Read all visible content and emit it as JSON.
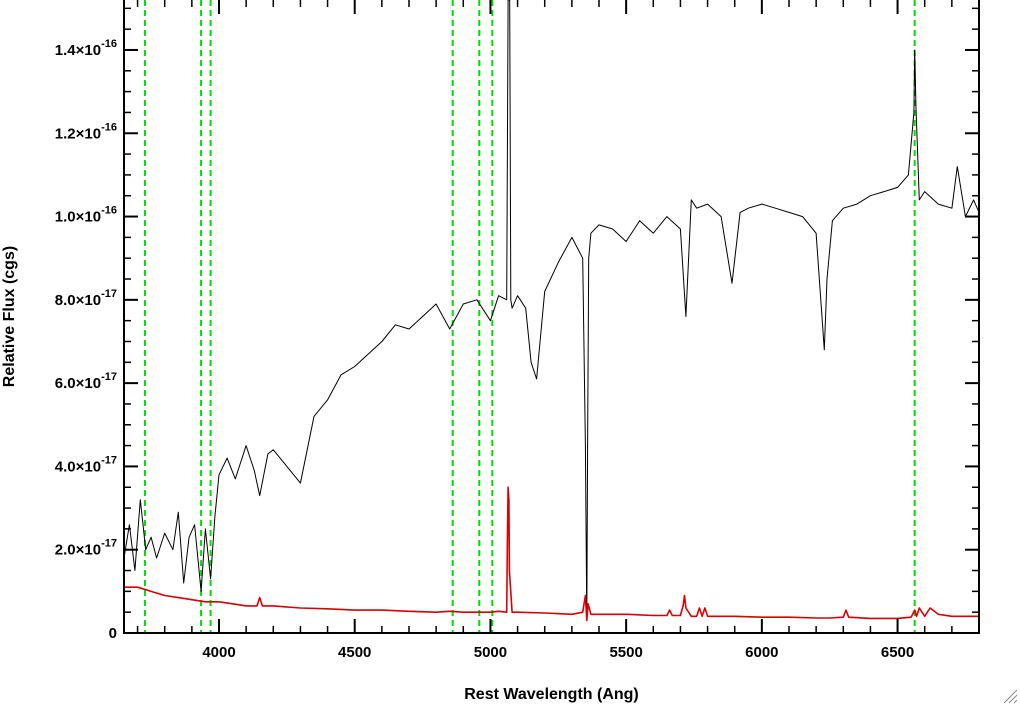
{
  "chart_data": {
    "type": "line",
    "xlabel": "Rest Wavelength (Ang)",
    "ylabel": "Relative Flux (cgs)",
    "xlim": [
      3650,
      6800
    ],
    "ylim": [
      0,
      1.52e-16
    ],
    "grid": false,
    "x_ticks": [
      4000,
      4500,
      5000,
      5500,
      6000,
      6500
    ],
    "x_tick_labels": [
      "4000",
      "4500",
      "5000",
      "5500",
      "6000",
      "6500"
    ],
    "y_ticks": [
      {
        "value": 0,
        "mantissa": "0",
        "exponent": ""
      },
      {
        "value": 2e-17,
        "mantissa": "2.0×10",
        "exponent": "-17"
      },
      {
        "value": 4e-17,
        "mantissa": "4.0×10",
        "exponent": "-17"
      },
      {
        "value": 6e-17,
        "mantissa": "6.0×10",
        "exponent": "-17"
      },
      {
        "value": 8e-17,
        "mantissa": "8.0×10",
        "exponent": "-17"
      },
      {
        "value": 1e-16,
        "mantissa": "1.0×10",
        "exponent": "-16"
      },
      {
        "value": 1.2e-16,
        "mantissa": "1.2×10",
        "exponent": "-16"
      },
      {
        "value": 1.4e-16,
        "mantissa": "1.4×10",
        "exponent": "-16"
      }
    ],
    "reference_lines_x": [
      3727,
      3934,
      3969,
      4861,
      4959,
      5007,
      6563
    ],
    "reference_line_color": "#00dd00",
    "series": [
      {
        "color": "#000000",
        "x": [
          3650,
          3670,
          3690,
          3710,
          3730,
          3750,
          3770,
          3800,
          3830,
          3850,
          3870,
          3890,
          3910,
          3934,
          3950,
          3969,
          3985,
          4000,
          4030,
          4060,
          4100,
          4130,
          4150,
          4180,
          4200,
          4250,
          4300,
          4350,
          4400,
          4450,
          4500,
          4550,
          4600,
          4650,
          4700,
          4750,
          4800,
          4850,
          4900,
          4950,
          5000,
          5030,
          5060,
          5065,
          5068,
          5071,
          5075,
          5080,
          5100,
          5130,
          5150,
          5170,
          5200,
          5250,
          5300,
          5340,
          5350,
          5355,
          5358,
          5362,
          5370,
          5400,
          5450,
          5500,
          5550,
          5600,
          5650,
          5700,
          5720,
          5740,
          5760,
          5800,
          5850,
          5890,
          5920,
          5950,
          6000,
          6050,
          6100,
          6150,
          6200,
          6230,
          6240,
          6260,
          6300,
          6350,
          6400,
          6450,
          6500,
          6540,
          6560,
          6563,
          6568,
          6580,
          6600,
          6650,
          6700,
          6720,
          6750,
          6780,
          6800
        ],
        "y": [
          1.8e-17,
          2.6e-17,
          1.5e-17,
          3.2e-17,
          2e-17,
          2.3e-17,
          1.8e-17,
          2.4e-17,
          2e-17,
          2.9e-17,
          1.2e-17,
          2.3e-17,
          2.6e-17,
          1e-17,
          2.5e-17,
          1.3e-17,
          2.8e-17,
          3.8e-17,
          4.2e-17,
          3.7e-17,
          4.5e-17,
          3.9e-17,
          3.3e-17,
          4.3e-17,
          4.4e-17,
          4e-17,
          3.6e-17,
          5.2e-17,
          5.6e-17,
          6.2e-17,
          6.4e-17,
          6.7e-17,
          7e-17,
          7.4e-17,
          7.3e-17,
          7.6e-17,
          7.9e-17,
          7.3e-17,
          7.9e-17,
          8e-17,
          7.5e-17,
          8.1e-17,
          8e-17,
          1.52e-16,
          1.52e-16,
          1.52e-16,
          8e-17,
          7.8e-17,
          8.1e-17,
          7.8e-17,
          6.5e-17,
          6.1e-17,
          8.2e-17,
          8.9e-17,
          9.5e-17,
          9e-17,
          4.5e-17,
          3e-18,
          4.5e-17,
          9e-17,
          9.6e-17,
          9.8e-17,
          9.7e-17,
          9.4e-17,
          9.9e-17,
          9.6e-17,
          1e-16,
          9.7e-17,
          7.6e-17,
          1.04e-16,
          1.02e-16,
          1.03e-16,
          1e-16,
          8.4e-17,
          1.01e-16,
          1.02e-16,
          1.03e-16,
          1.02e-16,
          1.01e-16,
          1e-16,
          9.6e-17,
          6.8e-17,
          8.5e-17,
          9.9e-17,
          1.02e-16,
          1.03e-16,
          1.05e-16,
          1.06e-16,
          1.07e-16,
          1.1e-16,
          1.25e-16,
          1.4e-16,
          1.26e-16,
          1.04e-16,
          1.06e-16,
          1.03e-16,
          1.02e-16,
          1.12e-16,
          1e-16,
          1.04e-16,
          1.01e-16
        ]
      },
      {
        "color": "#dd0000",
        "x": [
          3650,
          3700,
          3750,
          3800,
          3850,
          3900,
          3950,
          4000,
          4050,
          4100,
          4140,
          4150,
          4160,
          4200,
          4300,
          4400,
          4500,
          4600,
          4700,
          4800,
          4850,
          4900,
          4950,
          5000,
          5030,
          5060,
          5062,
          5065,
          5068,
          5070,
          5080,
          5100,
          5200,
          5300,
          5340,
          5350,
          5355,
          5360,
          5370,
          5400,
          5500,
          5600,
          5650,
          5660,
          5670,
          5700,
          5710,
          5715,
          5720,
          5740,
          5760,
          5770,
          5780,
          5790,
          5800,
          5900,
          6000,
          6100,
          6200,
          6250,
          6300,
          6310,
          6320,
          6400,
          6500,
          6550,
          6563,
          6570,
          6580,
          6600,
          6620,
          6650,
          6700,
          6750,
          6800
        ],
        "y": [
          1.1e-17,
          1.1e-17,
          1e-17,
          9e-18,
          8.5e-18,
          8e-18,
          7.5e-18,
          7.5e-18,
          7e-18,
          6.5e-18,
          6.5e-18,
          8.5e-18,
          6.5e-18,
          6.5e-18,
          6e-18,
          5.8e-18,
          5.5e-18,
          5.5e-18,
          5.2e-18,
          5e-18,
          5.2e-18,
          5e-18,
          5e-18,
          5e-18,
          5.2e-18,
          5e-18,
          2e-17,
          3.5e-17,
          3.2e-17,
          1.5e-17,
          5e-18,
          5e-18,
          4.8e-18,
          4.5e-18,
          5e-18,
          9e-18,
          3e-18,
          7e-18,
          4.5e-18,
          4.5e-18,
          4.5e-18,
          4.2e-18,
          4.2e-18,
          5.5e-18,
          4.2e-18,
          4.2e-18,
          6.5e-18,
          9e-18,
          6e-18,
          4e-18,
          4e-18,
          6e-18,
          4e-18,
          6e-18,
          4e-18,
          4e-18,
          3.8e-18,
          3.8e-18,
          3.6e-18,
          3.6e-18,
          3.8e-18,
          5.5e-18,
          3.8e-18,
          3.5e-18,
          3.5e-18,
          3.8e-18,
          5.5e-18,
          4e-18,
          6e-18,
          4e-18,
          6e-18,
          4.5e-18,
          4e-18,
          4e-18,
          4e-18
        ]
      }
    ]
  }
}
